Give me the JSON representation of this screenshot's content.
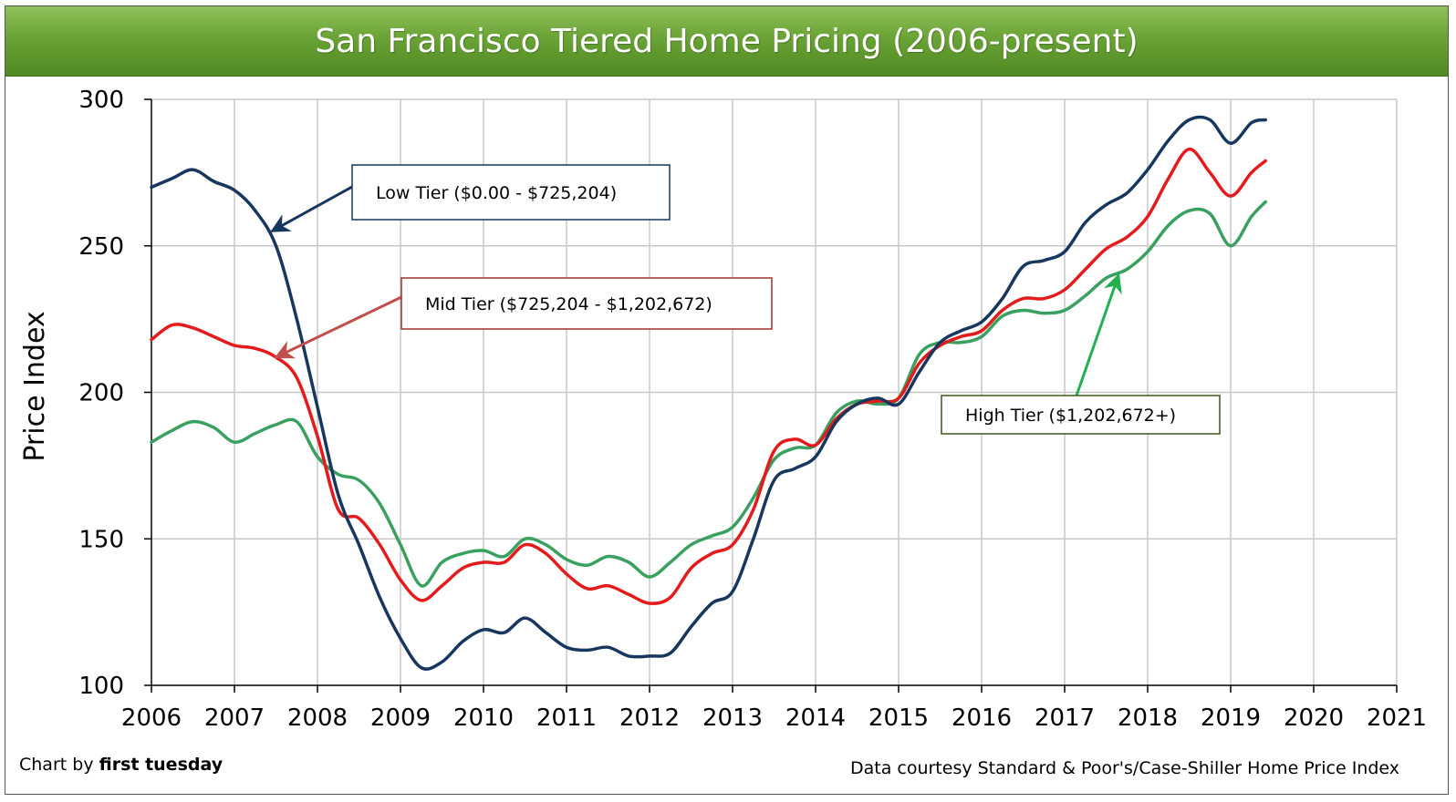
{
  "title": "San Francisco Tiered Home Pricing (2006-present)",
  "credit_left_prefix": "Chart by ",
  "credit_left_brand": "first tuesday",
  "credit_right": "Data courtesy Standard & Poor's/Case-Shiller Home Price Index",
  "colors": {
    "low": "#17375e",
    "mid": "#e41a1c",
    "high": "#3aa060",
    "grid": "#c8c8c8",
    "title_bar": "#6aa336"
  },
  "chart_data": {
    "type": "line",
    "title": "San Francisco Tiered Home Pricing (2006-present)",
    "xlabel": "",
    "ylabel": "Price Index",
    "xlim": [
      2006,
      2021
    ],
    "ylim": [
      100,
      300
    ],
    "x_ticks": [
      2006,
      2007,
      2008,
      2009,
      2010,
      2011,
      2012,
      2013,
      2014,
      2015,
      2016,
      2017,
      2018,
      2019,
      2020,
      2021
    ],
    "y_ticks": [
      100,
      150,
      200,
      250,
      300
    ],
    "grid": true,
    "x": [
      2006.0,
      2006.25,
      2006.5,
      2006.75,
      2007.0,
      2007.25,
      2007.5,
      2007.75,
      2008.0,
      2008.25,
      2008.5,
      2008.75,
      2009.0,
      2009.25,
      2009.5,
      2009.75,
      2010.0,
      2010.25,
      2010.5,
      2010.75,
      2011.0,
      2011.25,
      2011.5,
      2011.75,
      2012.0,
      2012.25,
      2012.5,
      2012.75,
      2013.0,
      2013.25,
      2013.5,
      2013.75,
      2014.0,
      2014.25,
      2014.5,
      2014.75,
      2015.0,
      2015.25,
      2015.5,
      2015.75,
      2016.0,
      2016.25,
      2016.5,
      2016.75,
      2017.0,
      2017.25,
      2017.5,
      2017.75,
      2018.0,
      2018.25,
      2018.5,
      2018.75,
      2019.0,
      2019.25,
      2019.42
    ],
    "series": [
      {
        "name": "Low Tier ($0.00 - $725,204)",
        "values": [
          270,
          273,
          276,
          272,
          269,
          262,
          250,
          225,
          195,
          165,
          148,
          130,
          116,
          106,
          108,
          115,
          119,
          118,
          123,
          118,
          113,
          112,
          113,
          110,
          110,
          111,
          120,
          128,
          132,
          150,
          170,
          174,
          178,
          190,
          196,
          198,
          196,
          207,
          217,
          221,
          224,
          232,
          243,
          245,
          248,
          258,
          264,
          268,
          276,
          286,
          293,
          293,
          285,
          292,
          293
        ]
      },
      {
        "name": "Mid Tier ($725,204 - $1,202,672)",
        "values": [
          218,
          223,
          222,
          219,
          216,
          215,
          212,
          205,
          185,
          160,
          157,
          148,
          136,
          129,
          134,
          140,
          142,
          142,
          148,
          145,
          138,
          133,
          134,
          131,
          128,
          130,
          140,
          145,
          148,
          160,
          180,
          184,
          182,
          191,
          196,
          197,
          198,
          210,
          216,
          219,
          221,
          228,
          232,
          232,
          235,
          242,
          249,
          253,
          260,
          273,
          283,
          275,
          267,
          275,
          279
        ]
      },
      {
        "name": "High Tier ($1,202,672+)",
        "values": [
          183,
          187,
          190,
          188,
          183,
          186,
          189,
          190,
          178,
          172,
          170,
          162,
          148,
          134,
          142,
          145,
          146,
          144,
          150,
          148,
          143,
          141,
          144,
          142,
          137,
          142,
          148,
          151,
          154,
          164,
          177,
          181,
          182,
          193,
          197,
          196,
          198,
          213,
          217,
          217,
          219,
          226,
          228,
          227,
          228,
          233,
          239,
          242,
          248,
          257,
          262,
          261,
          250,
          260,
          265
        ]
      }
    ],
    "annotations": [
      {
        "text": "Low Tier ($0.00 - $725,204)",
        "series": 0,
        "arrow_to": [
          2007.45,
          255
        ]
      },
      {
        "text": "Mid Tier ($725,204 - $1,202,672)",
        "series": 1,
        "arrow_to": [
          2007.5,
          212
        ]
      },
      {
        "text": "High Tier ($1,202,672+)",
        "series": 2,
        "arrow_to": [
          2017.65,
          240
        ]
      }
    ]
  }
}
